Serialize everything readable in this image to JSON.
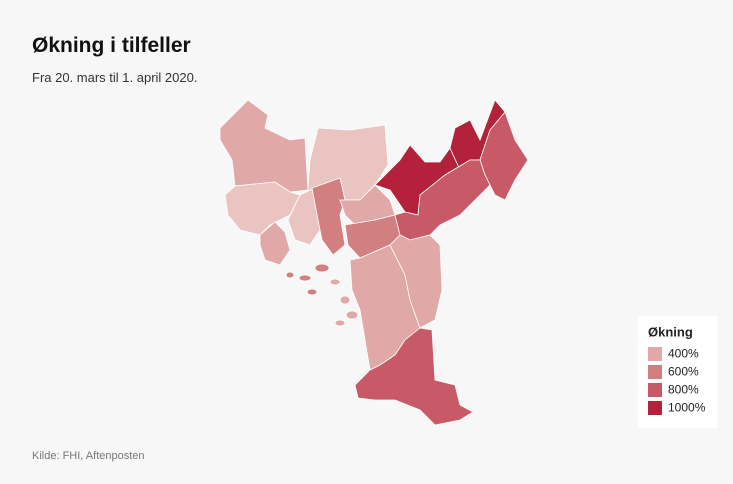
{
  "header": {
    "title": "Økning i tilfeller",
    "subtitle": "Fra 20. mars til 1. april 2020."
  },
  "legend": {
    "title": "Økning",
    "items": [
      {
        "label": "400%",
        "color": "#e0a9a8"
      },
      {
        "label": "600%",
        "color": "#d27f82"
      },
      {
        "label": "800%",
        "color": "#c75a66"
      },
      {
        "label": "1000%",
        "color": "#b3213a"
      }
    ]
  },
  "source": "Kilde: FHI, Aftenposten"
}
